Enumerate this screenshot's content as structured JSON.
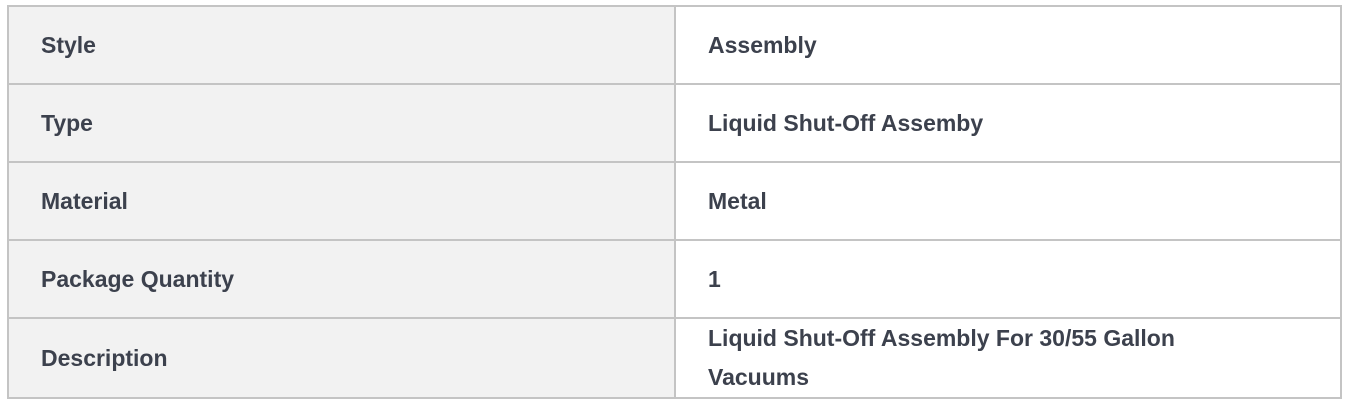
{
  "specs": [
    {
      "label": "Style",
      "value": "Assembly"
    },
    {
      "label": "Type",
      "value": "Liquid Shut-Off Assemby"
    },
    {
      "label": "Material",
      "value": "Metal"
    },
    {
      "label": "Package Quantity",
      "value": "1"
    },
    {
      "label": "Description",
      "value": "Liquid Shut-Off Assembly For 30/55 Gallon Vacuums"
    }
  ]
}
